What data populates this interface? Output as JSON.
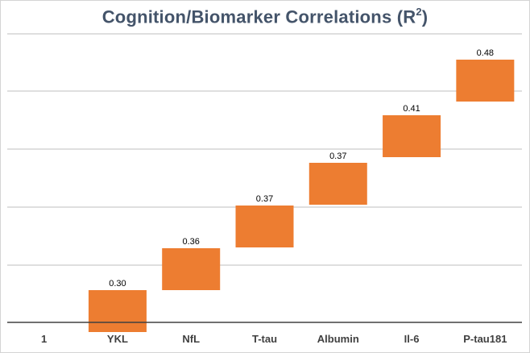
{
  "chart_data": {
    "type": "bar",
    "subtype": "waterfall-floating",
    "title_main": "Cognition/Biomarker Correlations (R",
    "title_sup": "2",
    "title_end": ")",
    "categories": [
      "1",
      "YKL",
      "NfL",
      "T-tau",
      "Albumin",
      "Il-6",
      "P-tau181"
    ],
    "values": [
      null,
      0.3,
      0.36,
      0.37,
      0.37,
      0.41,
      0.48
    ],
    "value_labels": [
      "",
      "0.30",
      "0.36",
      "0.37",
      "0.37",
      "0.41",
      "0.48"
    ],
    "y_min": 0,
    "y_max": 0.55,
    "gridlines": true,
    "legend": "none",
    "bar_color": "#ed7d31",
    "gridline_color": "#bfbfbf",
    "axis_color": "#404040"
  }
}
